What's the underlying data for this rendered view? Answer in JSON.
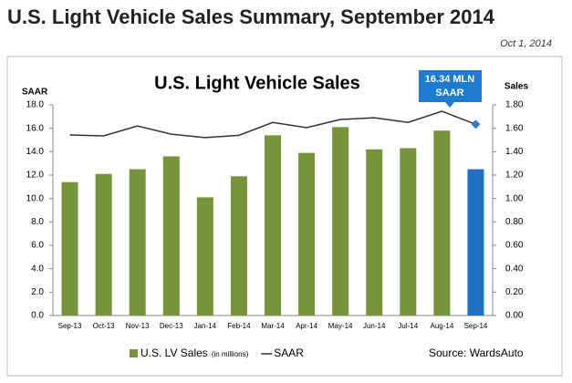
{
  "header": {
    "title": "U.S. Light Vehicle Sales Summary, September 2014",
    "date": "Oct 1, 2014"
  },
  "chart_data": {
    "type": "combo",
    "title": "U.S. Light Vehicle Sales",
    "ylabel": "SAAR",
    "y2label": "Sales",
    "categories": [
      "Sep-13",
      "Oct-13",
      "Nov-13",
      "Dec-13",
      "Jan-14",
      "Feb-14",
      "Mar-14",
      "Apr-14",
      "May-14",
      "Jun-14",
      "Jul-14",
      "Aug-14",
      "Sep-14"
    ],
    "series": [
      {
        "name": "U.S. LV Sales",
        "unit": "(in millions)",
        "type": "bar",
        "axis": "y2",
        "color": "#77933c",
        "colors": [
          "#77933c",
          "#77933c",
          "#77933c",
          "#77933c",
          "#77933c",
          "#77933c",
          "#77933c",
          "#77933c",
          "#77933c",
          "#77933c",
          "#77933c",
          "#77933c",
          "#1f6fc5"
        ],
        "values": [
          1.14,
          1.21,
          1.25,
          1.36,
          1.01,
          1.19,
          1.54,
          1.39,
          1.61,
          1.42,
          1.43,
          1.58,
          1.25
        ]
      },
      {
        "name": "SAAR",
        "type": "line",
        "color": "#333333",
        "marker_color": "#3b78c8",
        "values": [
          15.43,
          15.35,
          16.2,
          15.5,
          15.2,
          15.4,
          16.5,
          16.05,
          16.75,
          16.9,
          16.5,
          17.45,
          16.34
        ]
      }
    ],
    "annotation": [
      "16.34 MLN",
      "SAAR"
    ],
    "source": "Source: WardsAuto",
    "ylim": [
      0,
      18
    ],
    "yticks": [
      {
        "value": 0,
        "label": "0.0"
      },
      {
        "value": 2,
        "label": "2.0"
      },
      {
        "value": 4,
        "label": "4.0"
      },
      {
        "value": 6,
        "label": "6.0"
      },
      {
        "value": 8,
        "label": "8.0"
      },
      {
        "value": 10,
        "label": "10.0"
      },
      {
        "value": 12,
        "label": "12.0"
      },
      {
        "value": 14,
        "label": "14.0"
      },
      {
        "value": 16,
        "label": "16.0"
      },
      {
        "value": 18,
        "label": "18.0"
      }
    ],
    "y2lim": [
      0,
      1.8
    ],
    "y2ticks": [
      {
        "value": 0,
        "label": "0.00"
      },
      {
        "value": 0.2,
        "label": "0.20"
      },
      {
        "value": 0.4,
        "label": "0.40"
      },
      {
        "value": 0.6,
        "label": "0.60"
      },
      {
        "value": 0.8,
        "label": "0.80"
      },
      {
        "value": 1,
        "label": "1.00"
      },
      {
        "value": 1.2,
        "label": "1.20"
      },
      {
        "value": 1.4,
        "label": "1.40"
      },
      {
        "value": 1.6,
        "label": "1.60"
      },
      {
        "value": 1.8,
        "label": "1.80"
      }
    ]
  }
}
